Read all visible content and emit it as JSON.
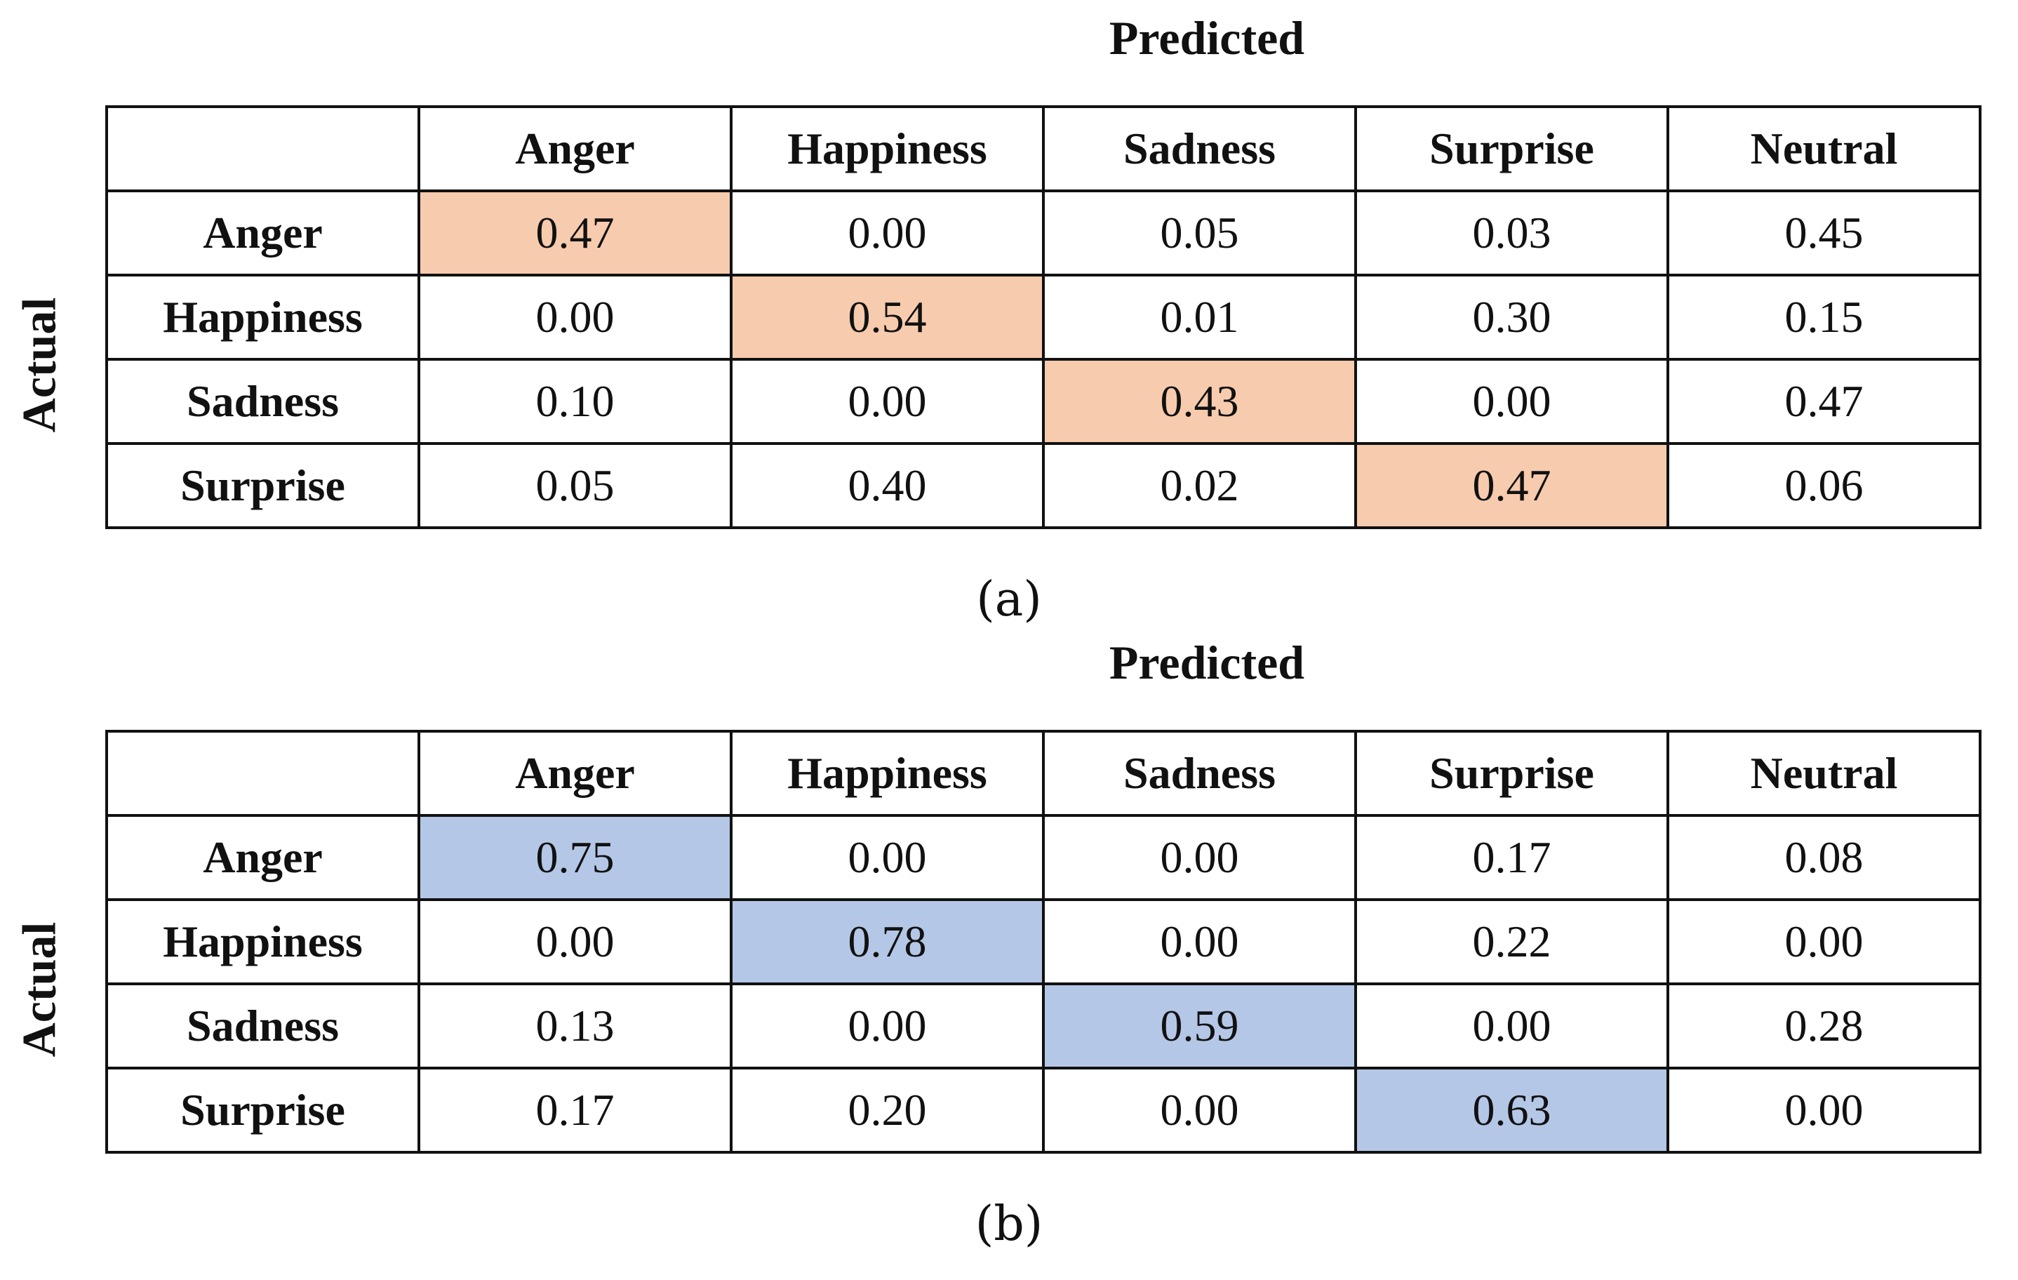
{
  "chart_data": [
    {
      "type": "table",
      "subtype": "confusion-matrix",
      "caption": "(a)",
      "column_axis_label": "Predicted",
      "row_axis_label": "Actual",
      "columns": [
        "Anger",
        "Happiness",
        "Sadness",
        "Surprise",
        "Neutral"
      ],
      "rows": [
        "Anger",
        "Happiness",
        "Sadness",
        "Surprise"
      ],
      "values": [
        [
          "0.47",
          "0.00",
          "0.05",
          "0.03",
          "0.45"
        ],
        [
          "0.00",
          "0.54",
          "0.01",
          "0.30",
          "0.15"
        ],
        [
          "0.10",
          "0.00",
          "0.43",
          "0.00",
          "0.47"
        ],
        [
          "0.05",
          "0.40",
          "0.02",
          "0.47",
          "0.06"
        ]
      ],
      "highlight": "diagonal",
      "highlight_color": "#f7cbad"
    },
    {
      "type": "table",
      "subtype": "confusion-matrix",
      "caption": "(b)",
      "column_axis_label": "Predicted",
      "row_axis_label": "Actual",
      "columns": [
        "Anger",
        "Happiness",
        "Sadness",
        "Surprise",
        "Neutral"
      ],
      "rows": [
        "Anger",
        "Happiness",
        "Sadness",
        "Surprise"
      ],
      "values": [
        [
          "0.75",
          "0.00",
          "0.00",
          "0.17",
          "0.08"
        ],
        [
          "0.00",
          "0.78",
          "0.00",
          "0.22",
          "0.00"
        ],
        [
          "0.13",
          "0.00",
          "0.59",
          "0.00",
          "0.28"
        ],
        [
          "0.17",
          "0.20",
          "0.00",
          "0.63",
          "0.00"
        ]
      ],
      "highlight": "diagonal",
      "highlight_color": "#b4c7e7"
    }
  ]
}
